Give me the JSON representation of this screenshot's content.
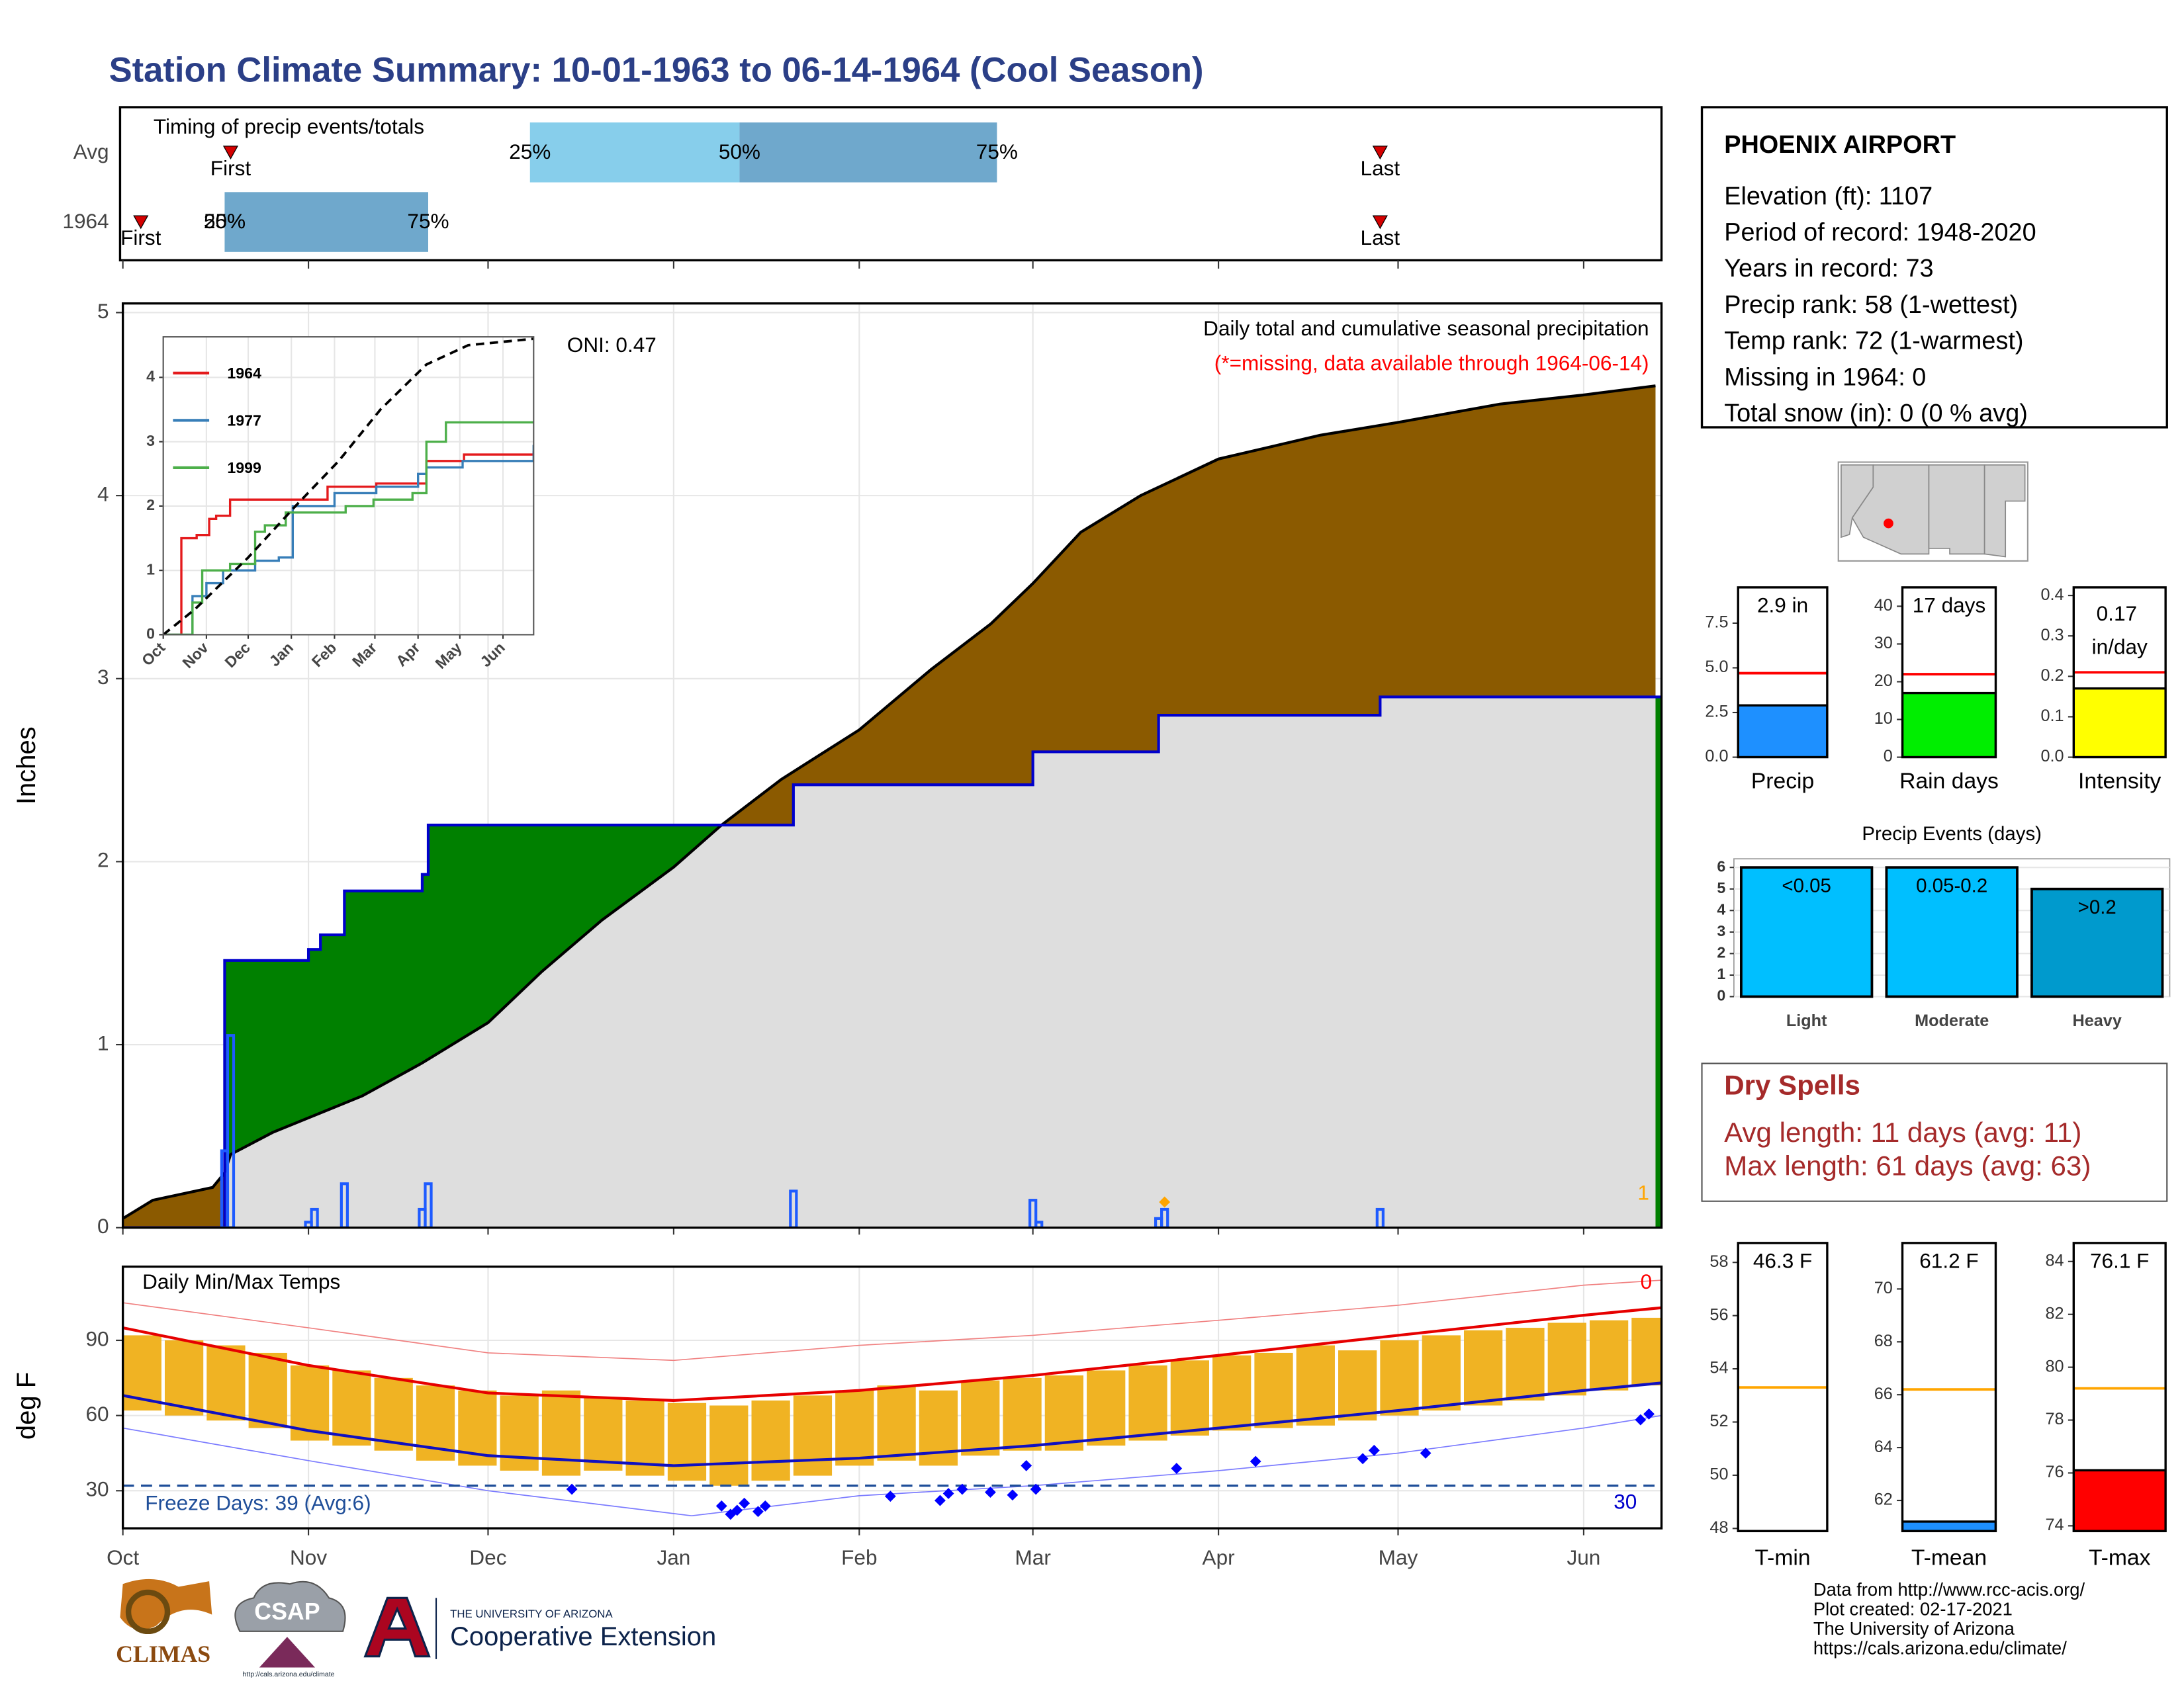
{
  "title": "Station Climate Summary: 10-01-1963 to 06-14-1964 (Cool Season)",
  "info": {
    "station": "PHOENIX AIRPORT",
    "lines": [
      "Elevation (ft): 1107",
      "Period of record: 1948-2020",
      "Years in record: 73",
      "Precip rank: 58 (1-wettest)",
      "Temp rank: 72 (1-warmest)",
      "Missing in 1964: 0",
      "Total snow (in): 0 (0 % avg)"
    ]
  },
  "dry_spells": {
    "title": "Dry Spells",
    "lines": [
      "Avg length: 11 days (avg: 11)",
      "Max length: 61 days (avg: 63)"
    ]
  },
  "footer": [
    "Data from http://www.rcc-acis.org/",
    "Plot created: 02-17-2021",
    "The University of Arizona",
    "https://cals.arizona.edu/climate/"
  ],
  "logos": {
    "climas": "CLIMAS",
    "csap": "CSAP",
    "csap_url": "http://cals.arizona.edu/climate",
    "university": "THE UNIVERSITY OF ARIZONA",
    "extension": "Cooperative Extension"
  },
  "chart_data": [
    {
      "type": "timing",
      "title": "Timing of precip events/totals",
      "categories": [
        "Avg",
        "1964"
      ],
      "first": [
        18,
        3
      ],
      "p25": [
        68,
        17
      ],
      "p50": [
        103,
        17
      ],
      "p75": [
        146,
        51
      ],
      "last": [
        210,
        210
      ],
      "first_label": "First",
      "last_label": "Last",
      "p25_label": "25%",
      "p50_label": "50%",
      "p75_label": "75%",
      "colors": [
        "#87ceeb",
        "#6fa8cc"
      ],
      "marker_color": "#d40000",
      "xlim": [
        0,
        257
      ]
    },
    {
      "type": "cumulative",
      "ylabel": "Inches",
      "note": "Daily total and cumulative seasonal precipitation",
      "missing_note": "(*=missing, data available through 1964-06-14)",
      "oni": "ONI: 0.47",
      "missing_count": 1,
      "xlim": [
        0,
        257
      ],
      "ylim": [
        0,
        5.05
      ],
      "yticks": [
        0,
        1,
        2,
        3,
        4,
        5
      ],
      "grid": true,
      "average": {
        "x": [
          0,
          5,
          15,
          17,
          18,
          25,
          31,
          40,
          50,
          61,
          70,
          80,
          92,
          100,
          110,
          123,
          135,
          145,
          152,
          160,
          170,
          183,
          200,
          213,
          230,
          244,
          256
        ],
        "values": [
          0.05,
          0.15,
          0.22,
          0.3,
          0.4,
          0.52,
          0.6,
          0.72,
          0.9,
          1.12,
          1.4,
          1.68,
          1.97,
          2.2,
          2.45,
          2.72,
          3.05,
          3.3,
          3.52,
          3.8,
          4.0,
          4.2,
          4.33,
          4.4,
          4.5,
          4.55,
          4.6
        ],
        "color": "#8b5a00"
      },
      "season": {
        "x": [
          0,
          17,
          31,
          33,
          37,
          50,
          51,
          112,
          152,
          173,
          210,
          257
        ],
        "values": [
          0,
          1.46,
          1.52,
          1.6,
          1.84,
          1.93,
          2.2,
          2.42,
          2.6,
          2.8,
          2.9,
          2.9
        ],
        "color": "#0000cc"
      },
      "daily": {
        "x": [
          17,
          18,
          31,
          32,
          37,
          50,
          51,
          112,
          152,
          153,
          173,
          174,
          210
        ],
        "values": [
          0.42,
          1.05,
          0.03,
          0.1,
          0.24,
          0.1,
          0.24,
          0.2,
          0.15,
          0.03,
          0.05,
          0.1,
          0.1
        ],
        "color": "#1e5bff"
      },
      "missing": {
        "x": [
          174
        ],
        "values": [
          0.14
        ],
        "color": "#ffa500"
      },
      "above_color": "#008000",
      "base_color": "#dedede"
    },
    {
      "type": "line",
      "xlim": [
        0,
        266
      ],
      "ylim": [
        0,
        4.63
      ],
      "yticks": [
        0,
        1,
        2,
        3,
        4
      ],
      "xticks": [
        {
          "value": 0,
          "label": "Oct"
        },
        {
          "value": 31,
          "label": "Nov"
        },
        {
          "value": 61,
          "label": "Dec"
        },
        {
          "value": 92,
          "label": "Jan"
        },
        {
          "value": 123,
          "label": "Feb"
        },
        {
          "value": 152,
          "label": "Mar"
        },
        {
          "value": 183,
          "label": "Apr"
        },
        {
          "value": 213,
          "label": "May"
        },
        {
          "value": 244,
          "label": "Jun"
        }
      ],
      "series": [
        {
          "name": "1964",
          "color": "#e41a1c",
          "x": [
            0,
            13,
            24,
            33,
            38,
            48,
            118,
            153,
            189,
            216,
            266
          ],
          "values": [
            0,
            1.5,
            1.55,
            1.8,
            1.85,
            2.1,
            2.3,
            2.35,
            2.7,
            2.8,
            2.85
          ]
        },
        {
          "name": "1977",
          "color": "#377eb8",
          "x": [
            0,
            21,
            31,
            43,
            66,
            83,
            93,
            118,
            123,
            153,
            183,
            189,
            215,
            266
          ],
          "values": [
            0,
            0.6,
            0.8,
            1.0,
            1.15,
            1.2,
            2.0,
            2.0,
            2.2,
            2.3,
            2.5,
            2.6,
            2.7,
            2.95
          ]
        },
        {
          "name": "1999",
          "color": "#4daf4a",
          "x": [
            0,
            21,
            28,
            48,
            66,
            73,
            88,
            128,
            131,
            151,
            179,
            189,
            203,
            266
          ],
          "values": [
            0,
            0.5,
            1.0,
            1.1,
            1.6,
            1.7,
            1.9,
            1.9,
            2.0,
            2.1,
            2.2,
            3.0,
            3.3,
            3.3
          ]
        }
      ],
      "average": {
        "x": [
          0,
          23,
          61,
          95,
          126,
          156,
          189,
          219,
          266
        ],
        "values": [
          0,
          0.4,
          1.2,
          2.0,
          2.7,
          3.5,
          4.2,
          4.5,
          4.6
        ],
        "color": "#000000"
      }
    },
    {
      "type": "temperature",
      "title": "Daily Min/Max Temps",
      "ylabel": "deg F",
      "freeze_label": "Freeze Days: 39 (Avg:6)",
      "freeze_line": 32,
      "record_count": 0,
      "days_below": 30,
      "xlim": [
        0,
        257
      ],
      "ylim": [
        15,
        119.4
      ],
      "yticks": [
        30,
        60,
        90
      ],
      "grid": true,
      "xticks": [
        {
          "value": 0,
          "label": "Oct"
        },
        {
          "value": 31,
          "label": "Nov"
        },
        {
          "value": 61,
          "label": "Dec"
        },
        {
          "value": 92,
          "label": "Jan"
        },
        {
          "value": 123,
          "label": "Feb"
        },
        {
          "value": 152,
          "label": "Mar"
        },
        {
          "value": 183,
          "label": "Apr"
        },
        {
          "value": 213,
          "label": "May"
        },
        {
          "value": 244,
          "label": "Jun"
        }
      ],
      "daily": {
        "x": [
          0,
          7,
          14,
          21,
          28,
          35,
          42,
          49,
          56,
          63,
          70,
          77,
          84,
          91,
          98,
          105,
          112,
          119,
          126,
          133,
          140,
          147,
          154,
          161,
          168,
          175,
          182,
          189,
          196,
          203,
          210,
          217,
          224,
          231,
          238,
          245,
          252
        ],
        "low": [
          62,
          60,
          58,
          55,
          50,
          48,
          46,
          42,
          40,
          38,
          36,
          38,
          36,
          34,
          32,
          34,
          36,
          40,
          42,
          40,
          44,
          46,
          46,
          48,
          50,
          52,
          54,
          55,
          56,
          58,
          60,
          62,
          64,
          66,
          68,
          70,
          72
        ],
        "high": [
          92,
          90,
          88,
          85,
          80,
          78,
          75,
          72,
          70,
          68,
          70,
          67,
          66,
          65,
          64,
          66,
          68,
          70,
          72,
          70,
          74,
          75,
          76,
          78,
          80,
          82,
          84,
          85,
          88,
          86,
          90,
          92,
          94,
          95,
          97,
          98,
          99
        ],
        "color": "#f0b323"
      },
      "average_max": {
        "x": [
          0,
          31,
          61,
          92,
          123,
          152,
          183,
          213,
          244,
          257
        ],
        "values": [
          95,
          80,
          69,
          66,
          70,
          76,
          84,
          92,
          100,
          103
        ],
        "color": "#e60000"
      },
      "average_min": {
        "x": [
          0,
          31,
          61,
          92,
          123,
          152,
          183,
          213,
          244,
          257
        ],
        "values": [
          68,
          54,
          44,
          40,
          43,
          48,
          55,
          62,
          70,
          73
        ],
        "color": "#1010c0"
      },
      "record_high": {
        "x": [
          0,
          31,
          61,
          92,
          123,
          152,
          183,
          213,
          244,
          257
        ],
        "values": [
          105,
          95,
          85,
          82,
          88,
          92,
          98,
          104,
          112,
          114
        ],
        "color": "#f08080"
      },
      "record_low": {
        "x": [
          0,
          31,
          61,
          95,
          123,
          152,
          183,
          213,
          244,
          257
        ],
        "values": [
          55,
          42,
          30,
          20,
          28,
          32,
          38,
          45,
          55,
          60
        ],
        "color": "#7b7bff"
      },
      "markers": {
        "x": [
          75,
          100,
          101.5,
          102.6,
          103.8,
          106.1,
          107.3,
          128.2,
          136.5,
          137.9,
          140.2,
          144.9,
          148.6,
          150.9,
          152.5,
          176,
          189.2,
          207.1,
          209,
          217.6,
          253.5,
          254.9
        ],
        "values": [
          30.6,
          23.9,
          20.6,
          22.2,
          25,
          21.7,
          23.9,
          27.8,
          26.1,
          28.9,
          30.6,
          29.4,
          28.3,
          40,
          30.6,
          38.9,
          41.7,
          42.8,
          46.1,
          45,
          58.3,
          60.6
        ],
        "color": "#0000ff"
      }
    },
    {
      "type": "bar",
      "categories": [
        "Precip"
      ],
      "values": [
        2.9
      ],
      "value_labels": [
        "2.9 in"
      ],
      "average": 4.7,
      "average_color": "#ff0000",
      "color": "#1e90ff",
      "ylim": [
        0,
        9.5
      ],
      "yticks": [
        {
          "value": 0,
          "label": "0.0"
        },
        2.5,
        {
          "value": 5,
          "label": "5.0"
        },
        7.5
      ]
    },
    {
      "type": "bar",
      "categories": [
        "Rain days"
      ],
      "values": [
        17
      ],
      "value_labels": [
        "17 days"
      ],
      "average": 22,
      "average_color": "#ff0000",
      "color": "#00ee00",
      "ylim": [
        0,
        45
      ],
      "yticks": [
        0,
        10,
        20,
        30,
        40
      ]
    },
    {
      "type": "bar",
      "categories": [
        "Intensity"
      ],
      "values": [
        0.17
      ],
      "value_labels": [
        "0.17 in/day"
      ],
      "average": 0.21,
      "average_color": "#ff0000",
      "color": "#ffff00",
      "ylim": [
        0,
        0.42
      ],
      "yticks": [
        {
          "value": 0,
          "label": "0.0"
        },
        0.1,
        0.2,
        0.3,
        0.4
      ]
    },
    {
      "type": "events",
      "title": "Precip Events (days)",
      "categories": [
        "Light",
        "Moderate",
        "Heavy"
      ],
      "values": [
        6,
        6,
        5
      ],
      "bar_labels": [
        "<0.05",
        "0.05-0.2",
        ">0.2"
      ],
      "colors": [
        "#00bfff",
        "#00bfff",
        "#009acd"
      ],
      "ylim": [
        0,
        6.4
      ],
      "yticks": [
        0,
        1,
        2,
        3,
        4,
        5,
        6
      ]
    },
    {
      "type": "bar",
      "categories": [
        "T-min"
      ],
      "values": [
        46.3
      ],
      "value_labels": [
        "46.3 F"
      ],
      "average": 53.3,
      "average_color": "#ffa500",
      "color": "#ffffff",
      "ylim": [
        47.9,
        58.73
      ],
      "yticks": [
        48,
        50,
        52,
        54,
        56,
        58
      ]
    },
    {
      "type": "bar",
      "categories": [
        "T-mean"
      ],
      "values": [
        61.2
      ],
      "value_labels": [
        "61.2 F"
      ],
      "average": 66.2,
      "average_color": "#ffa500",
      "color": "#1e90ff",
      "ylim": [
        60.84,
        71.74
      ],
      "yticks": [
        62,
        64,
        66,
        68,
        70
      ]
    },
    {
      "type": "bar",
      "categories": [
        "T-max"
      ],
      "values": [
        76.1
      ],
      "value_labels": [
        "76.1 F"
      ],
      "average": 79.2,
      "average_color": "#ffa500",
      "color": "#ff0000",
      "ylim": [
        73.8,
        84.7
      ],
      "yticks": [
        74,
        76,
        78,
        80,
        82,
        84
      ]
    }
  ]
}
